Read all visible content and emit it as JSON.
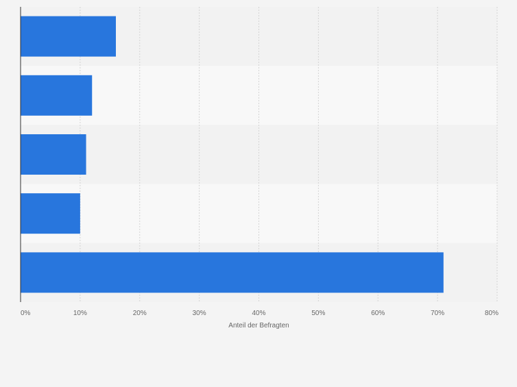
{
  "chart_data": {
    "type": "bar",
    "orientation": "horizontal",
    "categories": [
      "",
      "",
      "",
      "",
      ""
    ],
    "values": [
      16,
      12,
      11,
      10,
      71
    ],
    "value_unit": "%",
    "title": "",
    "xlabel": "Anteil der Befragten",
    "ylabel": "",
    "xlim": [
      0,
      80
    ],
    "xticks": [
      "0%",
      "10%",
      "20%",
      "30%",
      "40%",
      "50%",
      "60%",
      "70%",
      "80%"
    ],
    "grid": true,
    "legend": "none",
    "colors": {
      "bar": "#2876dd",
      "band_dark": "#f2f2f2",
      "band_light": "#f8f8f8",
      "gridline": "#d4d4d4",
      "axis": "#333333",
      "tick_text": "#666666"
    }
  }
}
